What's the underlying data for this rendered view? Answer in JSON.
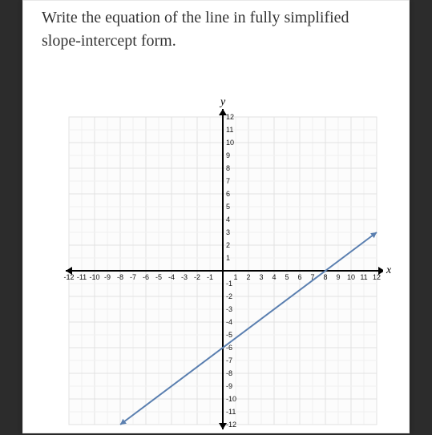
{
  "prompt_text": "Write the equation of the line in fully simplified slope-intercept form.",
  "chart": {
    "type": "line",
    "x_axis_label": "x",
    "y_axis_label": "y",
    "xlim": [
      -12,
      12
    ],
    "ylim": [
      -12,
      12
    ],
    "tick_step": 1,
    "x_ticks": [
      -12,
      -11,
      -10,
      -9,
      -8,
      -7,
      -6,
      -5,
      -4,
      -3,
      -2,
      -1,
      1,
      2,
      3,
      4,
      5,
      6,
      7,
      8,
      9,
      10,
      11,
      12
    ],
    "y_ticks": [
      12,
      11,
      10,
      9,
      8,
      7,
      6,
      5,
      4,
      3,
      2,
      1,
      -1,
      -2,
      -3,
      -4,
      -5,
      -6,
      -7,
      -8,
      -9,
      -10,
      -11,
      -12
    ],
    "background_color": "#ffffff",
    "grid_background": "#fcfcfc",
    "minor_grid_color": "#f0f0f0",
    "major_grid_color": "#e2e2e2",
    "axis_color": "#000000",
    "axis_width": 2,
    "line_color": "#5a7fb0",
    "line_width": 2,
    "line_points": [
      [
        -8,
        -12
      ],
      [
        12,
        3
      ]
    ],
    "arrow_size": 8,
    "label_fontsize": 9,
    "axis_label_fontsize": 14
  }
}
